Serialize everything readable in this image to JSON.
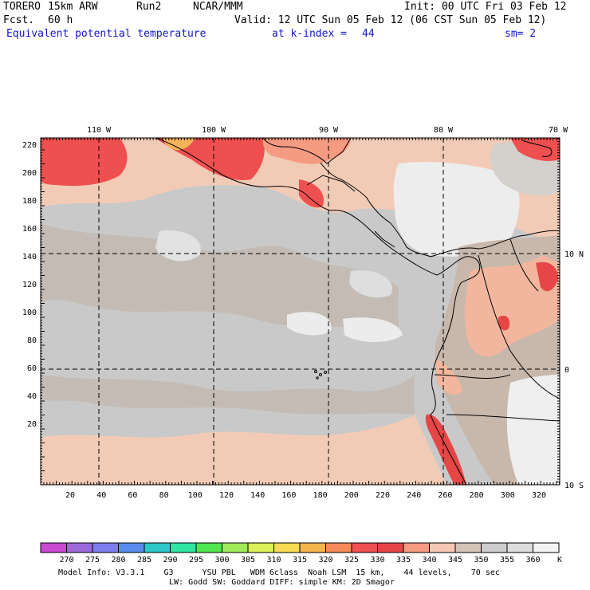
{
  "header": {
    "model": "TORERO",
    "resolution": "15km ARW",
    "run": "Run2",
    "org": "NCAR/MMM",
    "init": "Init: 00 UTC Fri 03 Feb 12",
    "fcst_label": "Fcst.",
    "fcst_value": "60 h",
    "valid": "Valid: 12 UTC Sun 05 Feb 12 (06 CST Sun 05 Feb 12)",
    "field": "Equivalent potential temperature",
    "level": "at k-index =",
    "level_value": "44",
    "smoothing": "sm= 2"
  },
  "map": {
    "top_lon_labels": [
      "110 W",
      "100 W",
      "90 W",
      "80 W",
      "70 W"
    ],
    "right_lat_labels": [
      "10 N",
      "0",
      "10 S"
    ],
    "left_grid_labels": [
      "220",
      "200",
      "180",
      "160",
      "140",
      "120",
      "100",
      "80",
      "60",
      "40",
      "20"
    ],
    "bottom_grid_labels": [
      "20",
      "40",
      "60",
      "80",
      "100",
      "120",
      "140",
      "160",
      "180",
      "200",
      "220",
      "240",
      "260",
      "280",
      "300",
      "320"
    ]
  },
  "colorbar": {
    "labels": [
      "270",
      "275",
      "280",
      "285",
      "290",
      "295",
      "300",
      "305",
      "310",
      "315",
      "320",
      "325",
      "330",
      "335",
      "340",
      "345",
      "350",
      "355",
      "360"
    ],
    "unit": "K",
    "colors": [
      "#c84bd2",
      "#9b6bd9",
      "#7d7df0",
      "#5a8cf0",
      "#2ec8c8",
      "#2ee6a0",
      "#50e650",
      "#a0eb5a",
      "#dcf05a",
      "#f5dc50",
      "#f5b450",
      "#f58a5a",
      "#f05050",
      "#e64646",
      "#f59b82",
      "#f5c8b4",
      "#d4c4b8",
      "#cccccc",
      "#dddddd",
      "#f4f4f4"
    ]
  },
  "footer": {
    "line1": "Model Info: V3.3.1    G3      YSU PBL   WDM 6class  Noah LSM  15 km,    44 levels,    70 sec",
    "line2": "LW: Godd SW: Goddard DIFF: simple KM: 2D Smagor"
  }
}
